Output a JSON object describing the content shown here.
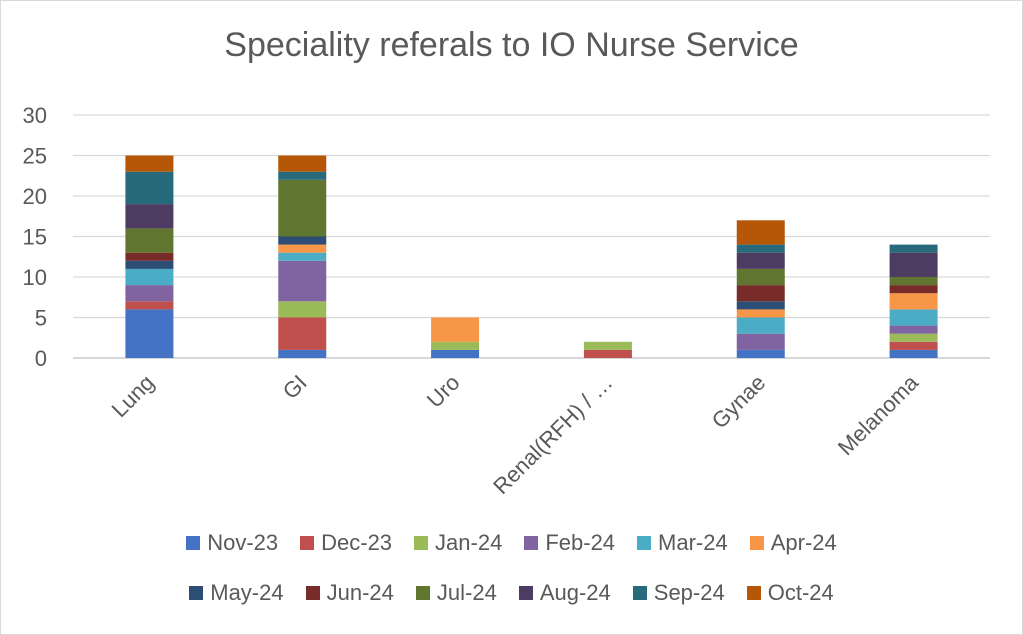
{
  "chart_data": {
    "type": "bar",
    "stacked": true,
    "title": "Speciality referals to IO Nurse Service",
    "xlabel": "",
    "ylabel": "",
    "ylim": [
      0,
      30
    ],
    "yticks": [
      0,
      5,
      10,
      15,
      20,
      25,
      30
    ],
    "grid": true,
    "legend_position": "bottom",
    "categories": [
      "Lung",
      "GI",
      "Uro",
      "Renal(RFH) / …",
      "Gynae",
      "Melanoma"
    ],
    "series": [
      {
        "name": "Nov-23",
        "color": "#4472C4",
        "values": [
          6,
          1,
          1,
          0,
          1,
          1
        ]
      },
      {
        "name": "Dec-23",
        "color": "#C0504D",
        "values": [
          1,
          4,
          0,
          1,
          0,
          1
        ]
      },
      {
        "name": "Jan-24",
        "color": "#9BBB59",
        "values": [
          0,
          2,
          1,
          1,
          0,
          1
        ]
      },
      {
        "name": "Feb-24",
        "color": "#8064A2",
        "values": [
          2,
          5,
          0,
          0,
          2,
          1
        ]
      },
      {
        "name": "Mar-24",
        "color": "#4BACC6",
        "values": [
          2,
          1,
          0,
          0,
          2,
          2
        ]
      },
      {
        "name": "Apr-24",
        "color": "#F79646",
        "values": [
          0,
          1,
          3,
          0,
          1,
          2
        ]
      },
      {
        "name": "May-24",
        "color": "#2C4D75",
        "values": [
          1,
          1,
          0,
          0,
          1,
          0
        ]
      },
      {
        "name": "Jun-24",
        "color": "#772C2A",
        "values": [
          1,
          0,
          0,
          0,
          2,
          1
        ]
      },
      {
        "name": "Jul-24",
        "color": "#5F7530",
        "values": [
          3,
          7,
          0,
          0,
          2,
          1
        ]
      },
      {
        "name": "Aug-24",
        "color": "#4D3B62",
        "values": [
          3,
          0,
          0,
          0,
          2,
          3
        ]
      },
      {
        "name": "Sep-24",
        "color": "#276A7C",
        "values": [
          4,
          1,
          0,
          0,
          1,
          1
        ]
      },
      {
        "name": "Oct-24",
        "color": "#B65708",
        "values": [
          2,
          2,
          0,
          0,
          3,
          0
        ]
      }
    ]
  }
}
